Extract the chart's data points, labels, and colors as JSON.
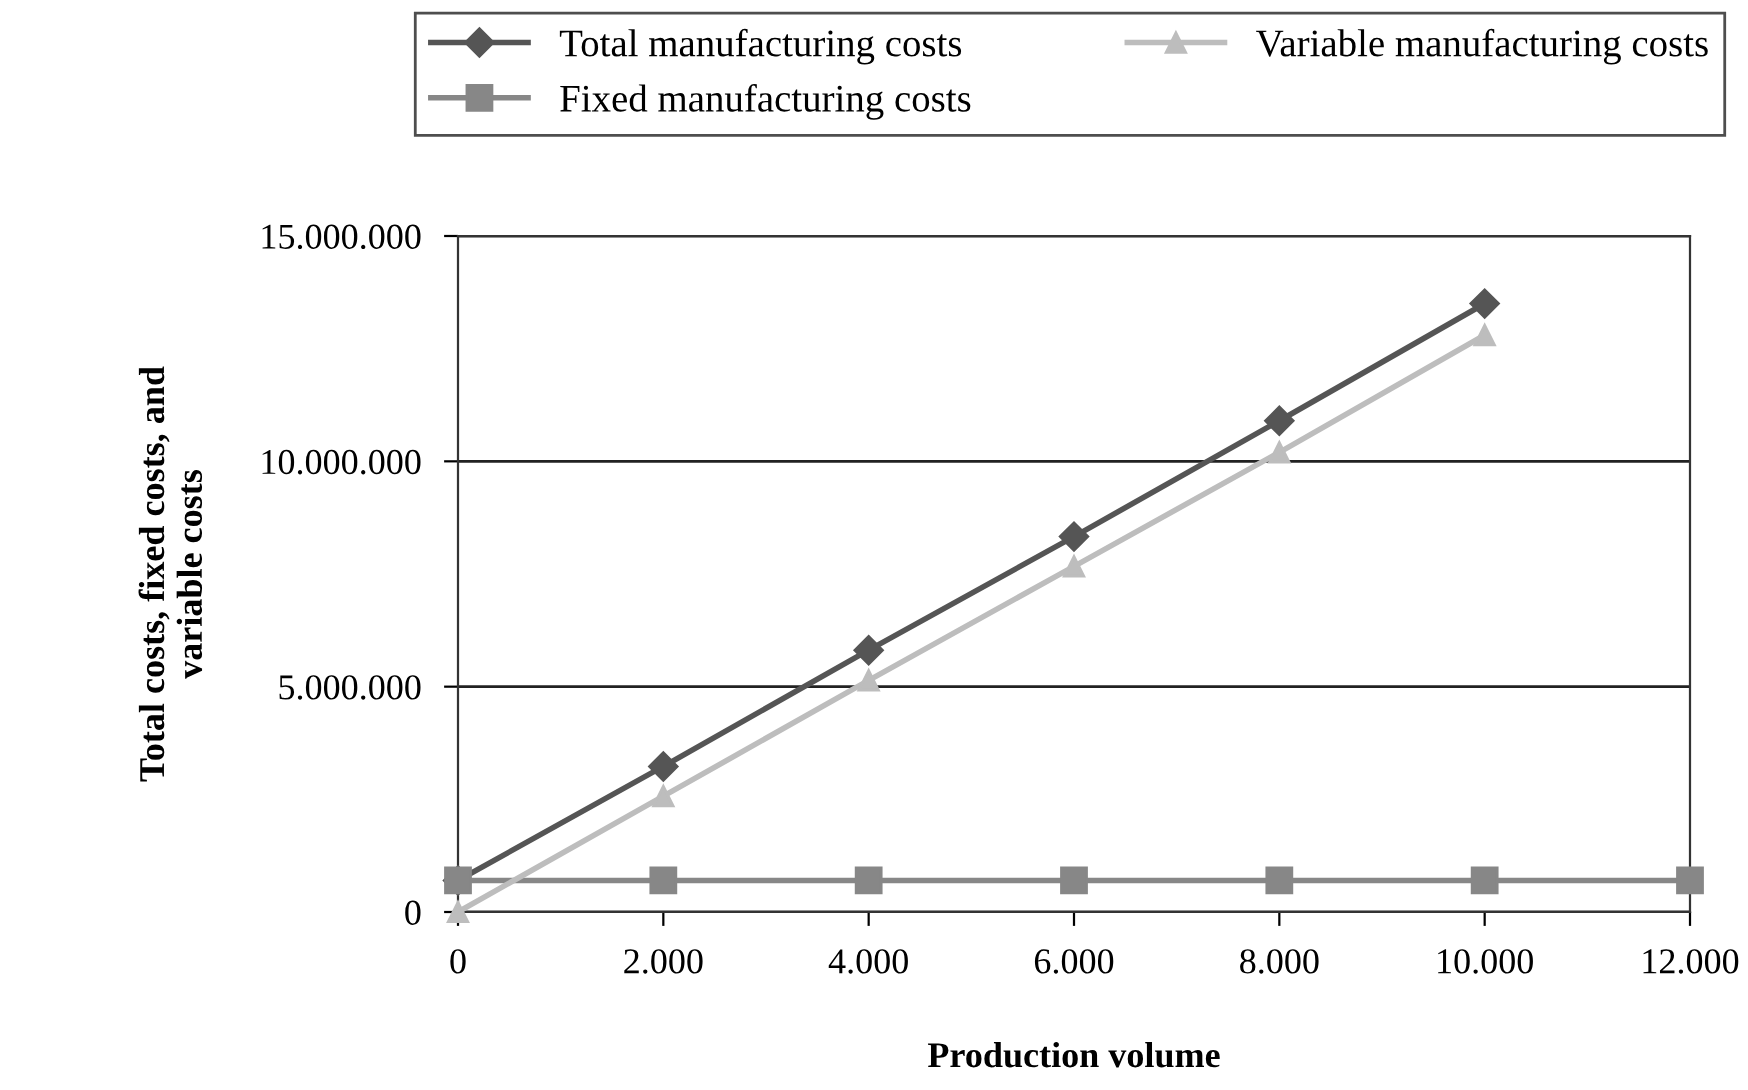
{
  "chart_data": {
    "type": "line",
    "xlabel": "Production volume",
    "ylabel": "Total costs, fixed costs, and\nvariable costs",
    "x": [
      0,
      2000,
      4000,
      6000,
      8000,
      10000,
      12000
    ],
    "series": [
      {
        "name": "Total manufacturing costs",
        "color": "#555555",
        "marker": "diamond",
        "values": [
          700000,
          3230000,
          5810000,
          8330000,
          10900000,
          13500000,
          null
        ]
      },
      {
        "name": "Fixed manufacturing costs",
        "color": "#878787",
        "marker": "square",
        "values": [
          700000,
          700000,
          700000,
          700000,
          700000,
          700000,
          700000
        ]
      },
      {
        "name": "Variable manufacturing costs",
        "color": "#bdbdbd",
        "marker": "triangle",
        "values": [
          0,
          2570000,
          5140000,
          7670000,
          10200000,
          12800000,
          null
        ]
      }
    ],
    "xlim": [
      0,
      12000
    ],
    "ylim": [
      0,
      15000000
    ],
    "xticks": [
      0,
      {
        "value": 2000,
        "label": "2.000"
      },
      {
        "value": 4000,
        "label": "4.000"
      },
      {
        "value": 6000,
        "label": "6.000"
      },
      {
        "value": 8000,
        "label": "8.000"
      },
      {
        "value": 10000,
        "label": "10.000"
      },
      {
        "value": 12000,
        "label": "12.000"
      }
    ],
    "yticks": [
      0,
      {
        "value": 5000000,
        "label": "5.000.000"
      },
      {
        "value": 10000000,
        "label": "10.000.000"
      },
      {
        "value": 15000000,
        "label": "15.000.000"
      }
    ],
    "grid": "y",
    "legend": "top",
    "line_style": "solid"
  }
}
